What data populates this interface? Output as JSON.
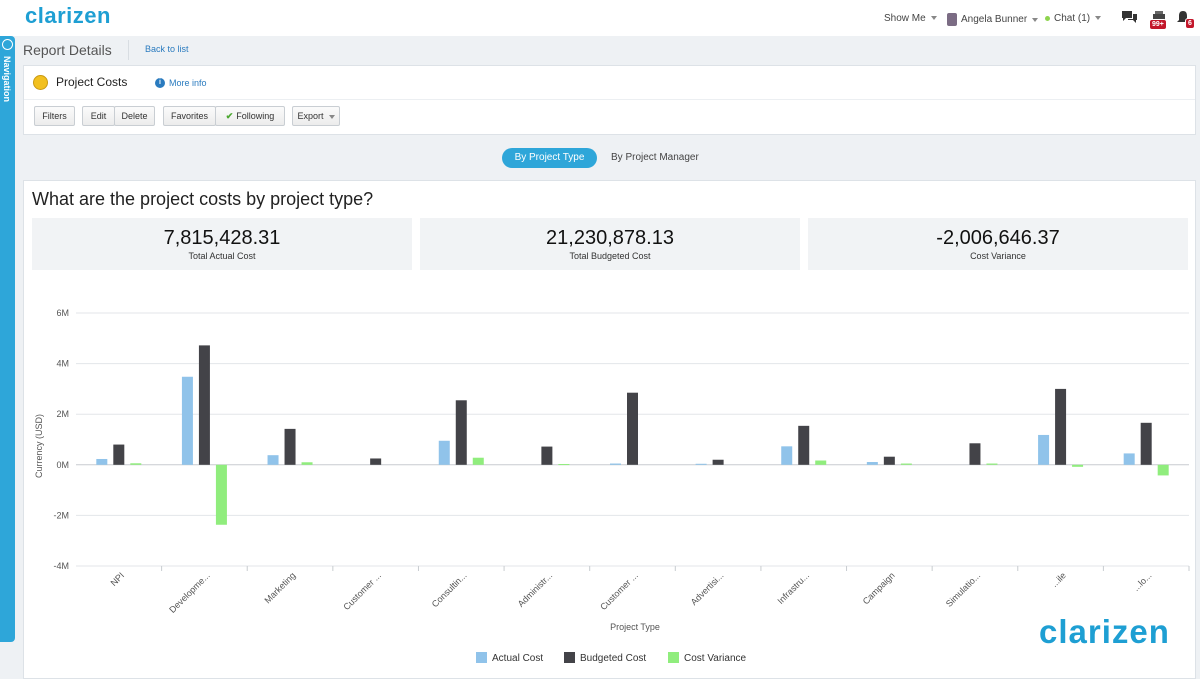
{
  "app": {
    "logo_text": "clarizen",
    "brand_color": "#1e9fd3"
  },
  "topbar": {
    "show_me": "Show Me",
    "user": "Angela Bunner",
    "chat": "Chat (1)",
    "notifications_badge": "99+",
    "alerts_badge": "6"
  },
  "nav": {
    "label": "Navigation"
  },
  "page": {
    "title": "Report Details",
    "back_link": "Back to list"
  },
  "report": {
    "name": "Project Costs",
    "more_info": "More info"
  },
  "toolbar": {
    "filters": "Filters",
    "edit": "Edit",
    "delete": "Delete",
    "favorites": "Favorites",
    "following": "Following",
    "export": "Export"
  },
  "view_toggle": {
    "active": "By Project Type",
    "inactive": "By Project Manager"
  },
  "question": "What are the project costs by project type?",
  "kpis": [
    {
      "value": "7,815,428.31",
      "label": "Total Actual Cost"
    },
    {
      "value": "21,230,878.13",
      "label": "Total Budgeted Cost"
    },
    {
      "value": "-2,006,646.37",
      "label": "Cost Variance"
    }
  ],
  "watermark": "clarizen",
  "chart_data": {
    "type": "bar",
    "xlabel": "Project Type",
    "ylabel": "Currency (USD)",
    "ylim": [
      -4000000,
      6000000
    ],
    "yticks": [
      "6M",
      "4M",
      "2M",
      "0M",
      "-2M",
      "-4M"
    ],
    "ytick_values": [
      6000000,
      4000000,
      2000000,
      0,
      -2000000,
      -4000000
    ],
    "categories": [
      "NPI",
      "Developme...",
      "Marketing",
      "Customer ...",
      "Consultin...",
      "Administr...",
      "Customer ...",
      "Advertisi...",
      "Infrastru...",
      "Campaign",
      "Simulatio...",
      "...ile",
      "...lo..."
    ],
    "series": [
      {
        "name": "Actual Cost",
        "color": "#90c3ea",
        "values": [
          230000,
          3480000,
          380000,
          0,
          950000,
          0,
          50000,
          40000,
          730000,
          110000,
          0,
          1180000,
          450000
        ]
      },
      {
        "name": "Budgeted Cost",
        "color": "#434348",
        "values": [
          800000,
          4720000,
          1420000,
          250000,
          2550000,
          720000,
          2850000,
          200000,
          1540000,
          320000,
          850000,
          3000000,
          1660000
        ]
      },
      {
        "name": "Cost Variance",
        "color": "#90ed7d",
        "values": [
          60000,
          -2370000,
          100000,
          0,
          280000,
          30000,
          0,
          0,
          170000,
          50000,
          50000,
          -80000,
          -420000
        ]
      }
    ],
    "grid": true,
    "legend": "bottom-center"
  }
}
